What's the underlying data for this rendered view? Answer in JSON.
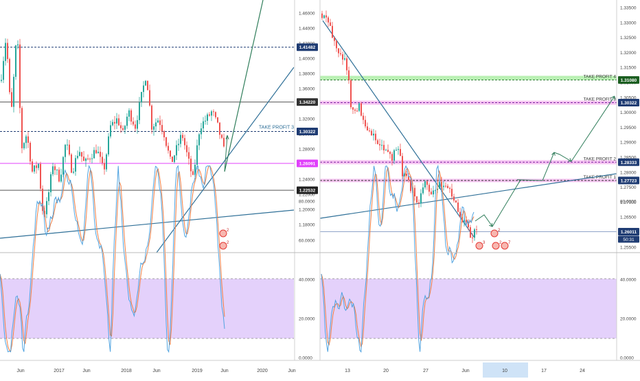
{
  "colors": {
    "candle_up": "#26a69a",
    "candle_down": "#ef5350",
    "trend_line": "#2e6f97",
    "projection_line": "#2f7d5a",
    "support_magenta": "#e040fb",
    "band_fill": "#e4d1fb",
    "k_line": "#4fa3e0",
    "d_line": "#f07b3f",
    "hline_navy": "#1f3c73",
    "hline_gray": "#555555",
    "tp4_zone": "#b9f0b3",
    "tp_zone_pink": "#f6c6f2"
  },
  "left_chart": {
    "price_ticks": [
      "1.46000",
      "1.44000",
      "1.42000",
      "1.40000",
      "1.38000",
      "1.36000",
      "1.34000",
      "1.32000",
      "1.30000",
      "1.28000",
      "1.26000",
      "1.24000",
      "1.22000",
      "1.20000",
      "1.18000"
    ],
    "level_labels": [
      "1.41482",
      "1.34220",
      "1.30322",
      "1.26091",
      "1.22532"
    ],
    "take_profit_label": "TAKE PROFIT 3",
    "osc_ticks": [
      "100.0000",
      "80.0000",
      "60.0000",
      "40.0000",
      "20.0000",
      "0.0000"
    ],
    "time_labels": [
      "Jun",
      "2017",
      "Jun",
      "2018",
      "Jun",
      "2019",
      "Jun",
      "2020",
      "Jun"
    ],
    "event_badges": [
      "2",
      "2"
    ]
  },
  "right_chart": {
    "price_ticks": [
      "1.33500",
      "1.33000",
      "1.32500",
      "1.32000",
      "1.31500",
      "1.31000",
      "1.30500",
      "1.30000",
      "1.29500",
      "1.29000",
      "1.28500",
      "1.28000",
      "1.27500",
      "1.27000",
      "1.26500",
      "1.26000",
      "1.25500"
    ],
    "level_labels": [
      "1.31080",
      "1.30322",
      "1.28333",
      "1.27723",
      "1.26011"
    ],
    "countdown": "50:31",
    "take_profit_labels": [
      "TAKE PROFIT 4",
      "TAKE PROFIT 3",
      "TAKE PROFIT 2",
      "TAKE PROFIT 1"
    ],
    "osc_ticks": [
      "100.0000",
      "80.0000",
      "60.0000",
      "40.0000",
      "20.0000",
      "0.0000"
    ],
    "time_labels": [
      "13",
      "20",
      "27",
      "Jun",
      "10",
      "17",
      "24"
    ],
    "event_badges": [
      "2",
      "3",
      "2",
      "7"
    ]
  }
}
